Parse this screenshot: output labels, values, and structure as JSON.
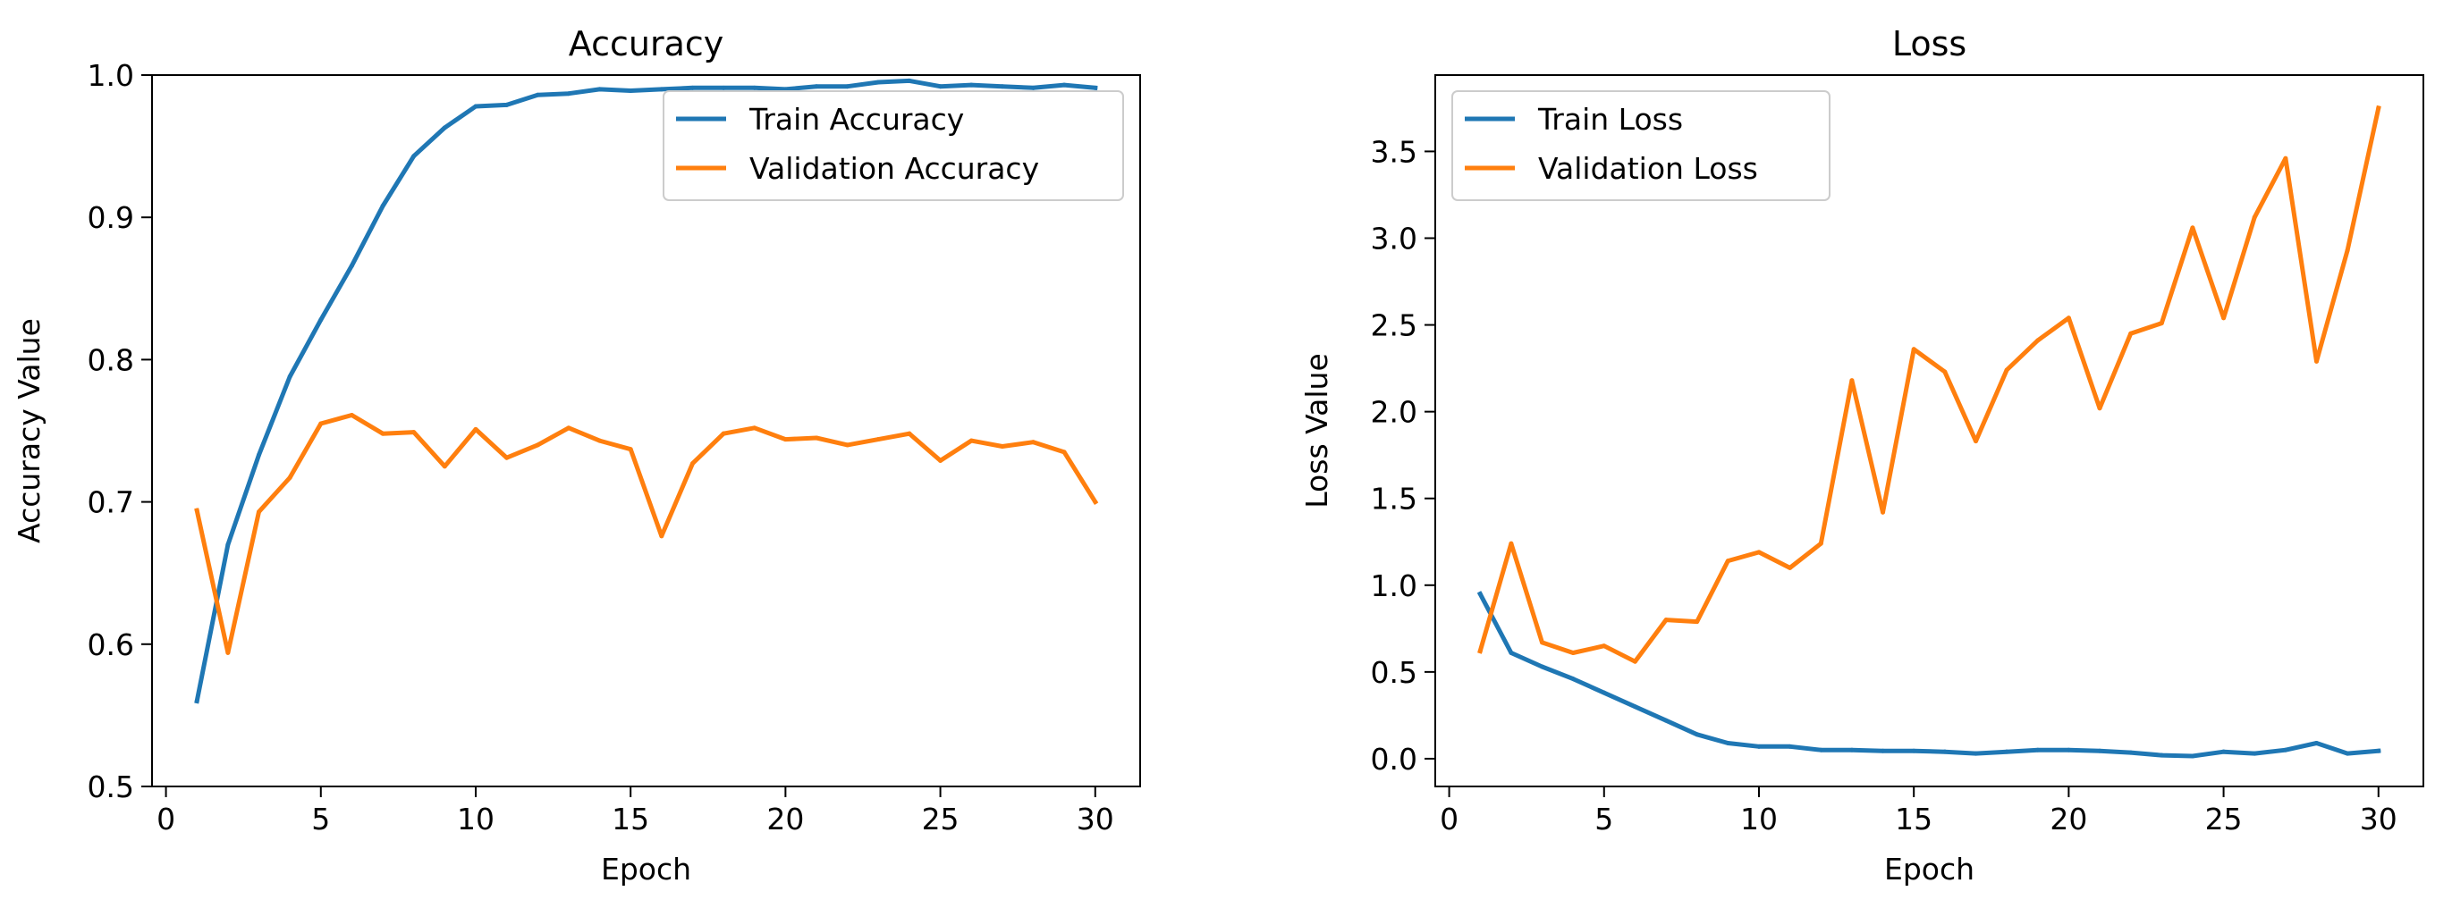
{
  "colors": {
    "train": "#1f77b4",
    "validation": "#ff7f0e",
    "frame": "#000000",
    "legend_border": "#cccccc"
  },
  "chart_data": [
    {
      "type": "line",
      "title": "Accuracy",
      "xlabel": "Epoch",
      "ylabel": "Accuracy Value",
      "xlim": [
        -0.45,
        31.45
      ],
      "ylim": [
        0.5,
        1.0
      ],
      "xticks": [
        0,
        5,
        10,
        15,
        20,
        25,
        30
      ],
      "xtick_labels": [
        "0",
        "5",
        "10",
        "15",
        "20",
        "25",
        "30"
      ],
      "yticks": [
        0.5,
        0.6,
        0.7,
        0.8,
        0.9,
        1.0
      ],
      "ytick_labels": [
        "0.5",
        "0.6",
        "0.7",
        "0.8",
        "0.9",
        "1.0"
      ],
      "legend_position": "top-right",
      "x": [
        1,
        2,
        3,
        4,
        5,
        6,
        7,
        8,
        9,
        10,
        11,
        12,
        13,
        14,
        15,
        16,
        17,
        18,
        19,
        20,
        21,
        22,
        23,
        24,
        25,
        26,
        27,
        28,
        29,
        30
      ],
      "series": [
        {
          "name": "Train Accuracy",
          "color": "#1f77b4",
          "values": [
            0.56,
            0.67,
            0.733,
            0.788,
            0.828,
            0.866,
            0.908,
            0.943,
            0.963,
            0.978,
            0.979,
            0.986,
            0.987,
            0.99,
            0.989,
            0.99,
            0.991,
            0.991,
            0.991,
            0.99,
            0.992,
            0.992,
            0.995,
            0.996,
            0.992,
            0.993,
            0.992,
            0.991,
            0.993,
            0.991
          ]
        },
        {
          "name": "Validation Accuracy",
          "color": "#ff7f0e",
          "values": [
            0.694,
            0.594,
            0.693,
            0.717,
            0.755,
            0.761,
            0.748,
            0.749,
            0.725,
            0.751,
            0.731,
            0.74,
            0.752,
            0.743,
            0.737,
            0.676,
            0.727,
            0.748,
            0.752,
            0.744,
            0.745,
            0.74,
            0.744,
            0.748,
            0.729,
            0.743,
            0.739,
            0.742,
            0.735,
            0.7
          ]
        }
      ]
    },
    {
      "type": "line",
      "title": "Loss",
      "xlabel": "Epoch",
      "ylabel": "Loss Value",
      "xlim": [
        -0.45,
        31.45
      ],
      "ylim": [
        -0.16,
        3.94
      ],
      "xticks": [
        0,
        5,
        10,
        15,
        20,
        25,
        30
      ],
      "xtick_labels": [
        "0",
        "5",
        "10",
        "15",
        "20",
        "25",
        "30"
      ],
      "yticks": [
        0.0,
        0.5,
        1.0,
        1.5,
        2.0,
        2.5,
        3.0,
        3.5
      ],
      "ytick_labels": [
        "0.0",
        "0.5",
        "1.0",
        "1.5",
        "2.0",
        "2.5",
        "3.0",
        "3.5"
      ],
      "legend_position": "top-left",
      "x": [
        1,
        2,
        3,
        4,
        5,
        6,
        7,
        8,
        9,
        10,
        11,
        12,
        13,
        14,
        15,
        16,
        17,
        18,
        19,
        20,
        21,
        22,
        23,
        24,
        25,
        26,
        27,
        28,
        29,
        30
      ],
      "series": [
        {
          "name": "Train Loss",
          "color": "#1f77b4",
          "values": [
            0.95,
            0.61,
            0.53,
            0.46,
            0.38,
            0.3,
            0.22,
            0.14,
            0.09,
            0.07,
            0.07,
            0.05,
            0.05,
            0.045,
            0.045,
            0.04,
            0.03,
            0.04,
            0.05,
            0.05,
            0.045,
            0.035,
            0.02,
            0.015,
            0.04,
            0.03,
            0.05,
            0.09,
            0.03,
            0.045
          ]
        },
        {
          "name": "Validation Loss",
          "color": "#ff7f0e",
          "values": [
            0.62,
            1.24,
            0.67,
            0.61,
            0.65,
            0.56,
            0.8,
            0.79,
            1.14,
            1.19,
            1.1,
            1.24,
            2.18,
            1.42,
            2.36,
            2.23,
            1.83,
            2.24,
            2.41,
            2.54,
            2.02,
            2.45,
            2.51,
            3.06,
            2.54,
            3.12,
            3.46,
            2.29,
            2.93,
            3.75
          ]
        }
      ]
    }
  ]
}
